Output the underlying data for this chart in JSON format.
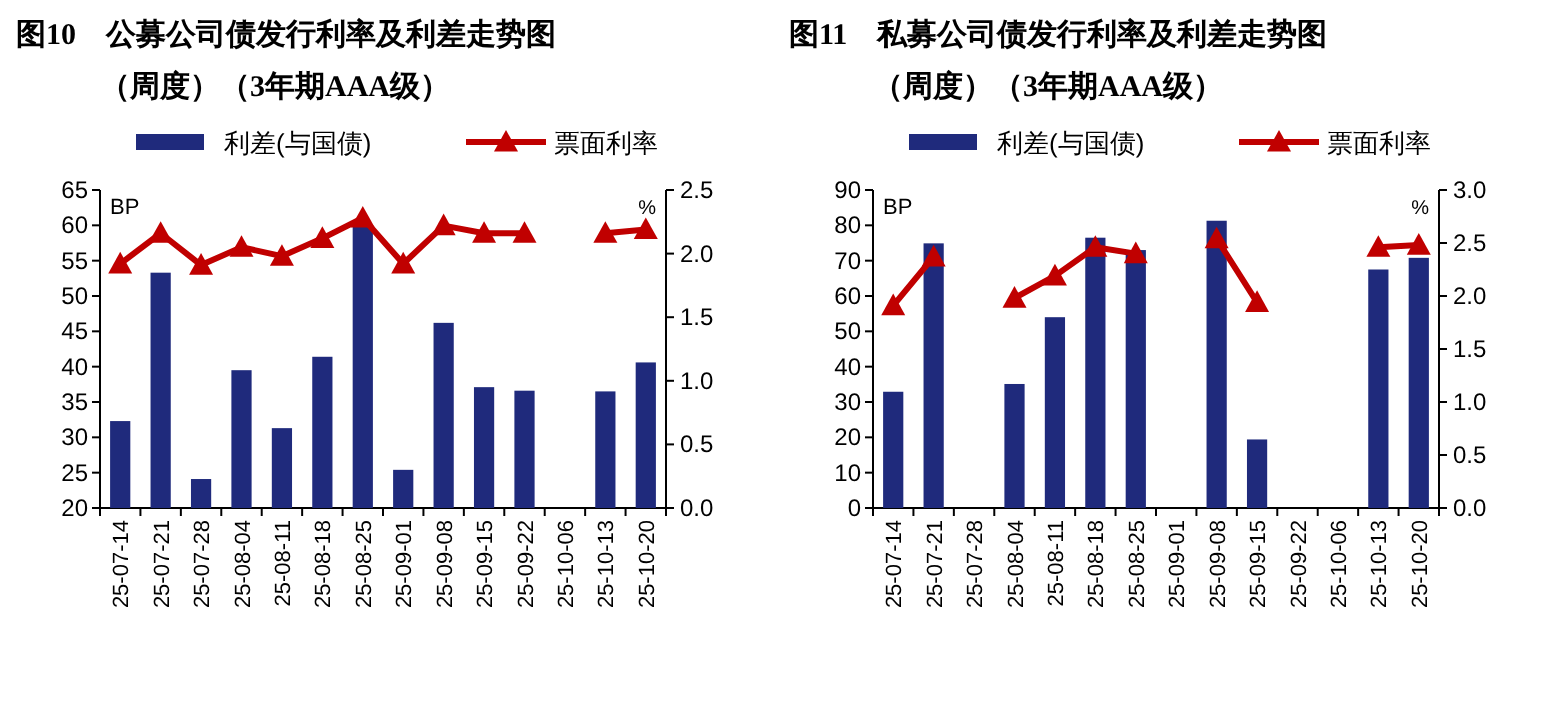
{
  "chart_data": [
    {
      "type": "bar",
      "title": "图10　公募公司债发行利率及利差走势图",
      "subtitle": "（周度）（3年期AAA级）",
      "ylabel": "BP",
      "y2label": "%",
      "legend": "top",
      "categories": [
        "25-07-14",
        "25-07-21",
        "25-07-28",
        "25-08-04",
        "25-08-11",
        "25-08-18",
        "25-08-25",
        "25-09-01",
        "25-09-08",
        "25-09-15",
        "25-09-22",
        "25-10-06",
        "25-10-13",
        "25-10-20"
      ],
      "series": [
        {
          "name": "利差(与国债)",
          "color": "#1f2a7c",
          "values": [
            32.3,
            53.3,
            24.1,
            39.5,
            31.3,
            41.4,
            59.8,
            25.4,
            46.2,
            37.1,
            36.6,
            null,
            36.5,
            40.6
          ]
        },
        {
          "name": "票面利率",
          "type": "line",
          "axis": "y2",
          "marker": "triangle",
          "color": "#c00000",
          "values": [
            1.92,
            2.16,
            1.91,
            2.05,
            1.98,
            2.12,
            2.28,
            1.92,
            2.22,
            2.16,
            2.16,
            null,
            2.16,
            2.19
          ]
        }
      ],
      "ylim": [
        20,
        65
      ],
      "yticks": [
        20,
        25,
        30,
        35,
        40,
        45,
        50,
        55,
        60,
        65
      ],
      "y2lim": [
        0,
        2.5
      ],
      "y2ticks": [
        {
          "value": 0,
          "label": "0.0"
        },
        0.5,
        {
          "value": 1,
          "label": "1.0"
        },
        1.5,
        {
          "value": 2,
          "label": "2.0"
        },
        2.5
      ]
    },
    {
      "type": "bar",
      "title": "图11　私募公司债发行利率及利差走势图",
      "subtitle": "（周度）（3年期AAA级）",
      "ylabel": "BP",
      "y2label": "%",
      "legend": "top",
      "categories": [
        "25-07-14",
        "25-07-21",
        "25-07-28",
        "25-08-04",
        "25-08-11",
        "25-08-18",
        "25-08-25",
        "25-09-01",
        "25-09-08",
        "25-09-15",
        "25-09-22",
        "25-10-06",
        "25-10-13",
        "25-10-20"
      ],
      "series": [
        {
          "name": "利差(与国债)",
          "color": "#1f2a7c",
          "values": [
            32.9,
            74.9,
            null,
            35.1,
            54.0,
            76.5,
            73.0,
            null,
            81.3,
            19.4,
            null,
            null,
            67.5,
            70.8
          ]
        },
        {
          "name": "票面利率",
          "type": "line",
          "axis": "y2",
          "marker": "triangle",
          "color": "#c00000",
          "values": [
            1.91,
            2.37,
            null,
            1.98,
            2.19,
            2.46,
            2.4,
            null,
            2.54,
            1.94,
            null,
            null,
            2.46,
            2.48
          ]
        }
      ],
      "ylim": [
        0,
        90
      ],
      "yticks": [
        0,
        10,
        20,
        30,
        40,
        50,
        60,
        70,
        80,
        90
      ],
      "y2lim": [
        0,
        3.0
      ],
      "y2ticks": [
        {
          "value": 0,
          "label": "0.0"
        },
        0.5,
        {
          "value": 1,
          "label": "1.0"
        },
        1.5,
        {
          "value": 2,
          "label": "2.0"
        },
        2.5,
        {
          "value": 3,
          "label": "3.0"
        }
      ]
    }
  ]
}
